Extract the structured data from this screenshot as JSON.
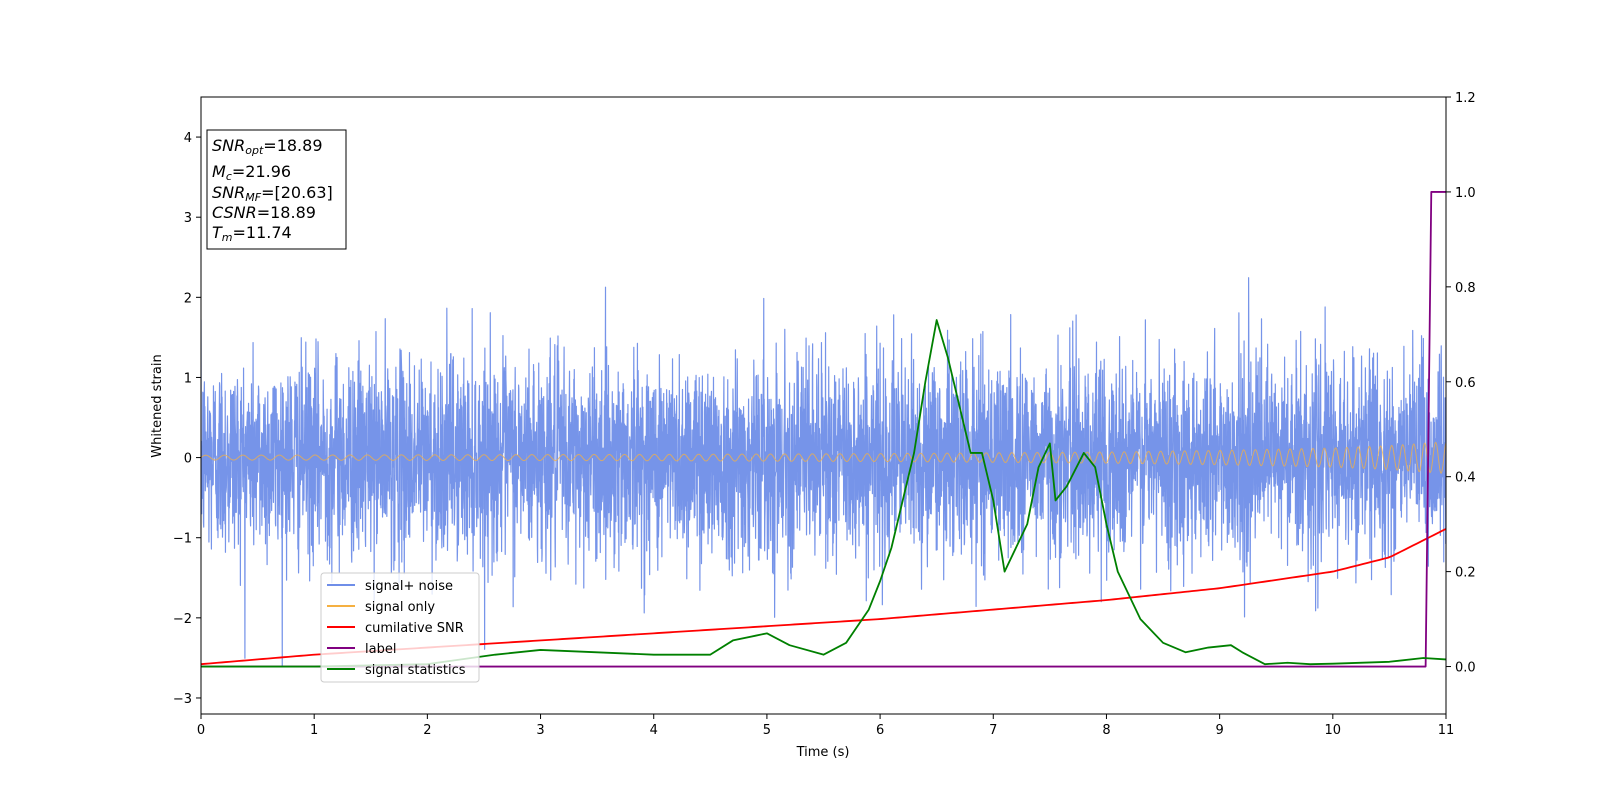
{
  "chart_data": {
    "type": "line",
    "xlabel": "Time (s)",
    "ylabel": "Whitened strain",
    "xlim": [
      0,
      11
    ],
    "ylim_left": [
      -3.2,
      4.5
    ],
    "ylim_right": [
      -0.1,
      1.2
    ],
    "x_ticks": [
      "0",
      "1",
      "2",
      "3",
      "4",
      "5",
      "6",
      "7",
      "8",
      "9",
      "10",
      "11"
    ],
    "y_left_ticks": [
      "4",
      "3",
      "2",
      "1",
      "0",
      "−1",
      "−2",
      "−3"
    ],
    "y_right_ticks": [
      "1.2",
      "1.0",
      "0.8",
      "0.6",
      "0.4",
      "0.2",
      "0.0"
    ],
    "grid": false,
    "legend_position": "lower-left",
    "info_box": [
      {
        "base": "SNR",
        "sub": "opt",
        "value": "=18.89"
      },
      {
        "base": "M",
        "sub": "c",
        "value": "=21.96"
      },
      {
        "base": "SNR",
        "sub": "MF",
        "value": "=[20.63]"
      },
      {
        "base": "CSNR",
        "sub": "",
        "value": "=18.89"
      },
      {
        "base": "T",
        "sub": "m",
        "value": "=11.74"
      }
    ],
    "series": [
      {
        "name": "signal+ noise",
        "axis": "left",
        "color": "#6f8ee8",
        "style": "noise",
        "amplitude_std": 0.62,
        "fs": 500
      },
      {
        "name": "signal only",
        "axis": "left",
        "color": "#f5b041",
        "style": "chirp",
        "x": [
          0,
          2,
          4,
          6,
          8,
          9,
          10,
          10.5,
          11
        ],
        "amplitude": [
          0.03,
          0.035,
          0.04,
          0.05,
          0.07,
          0.09,
          0.12,
          0.15,
          0.2
        ]
      },
      {
        "name": "cumilative SNR",
        "axis": "right",
        "color": "#ff0000",
        "x": [
          0,
          1,
          2,
          3,
          4,
          5,
          6,
          7,
          8,
          9,
          10,
          10.5,
          11
        ],
        "y": [
          0.005,
          0.025,
          0.04,
          0.055,
          0.07,
          0.085,
          0.1,
          0.12,
          0.14,
          0.165,
          0.2,
          0.23,
          0.29
        ]
      },
      {
        "name": "label",
        "axis": "right",
        "color": "#800080",
        "x": [
          0,
          10.82,
          10.87,
          11
        ],
        "y": [
          0,
          0,
          1.0,
          1.0
        ]
      },
      {
        "name": "signal statistics",
        "axis": "right",
        "color": "#008000",
        "x": [
          0,
          1,
          2,
          2.3,
          2.6,
          3.0,
          3.5,
          4.0,
          4.5,
          4.7,
          4.9,
          5.0,
          5.2,
          5.5,
          5.7,
          5.9,
          6.0,
          6.1,
          6.3,
          6.4,
          6.5,
          6.6,
          6.8,
          6.9,
          7.0,
          7.1,
          7.3,
          7.4,
          7.5,
          7.55,
          7.65,
          7.8,
          7.9,
          8.0,
          8.1,
          8.3,
          8.5,
          8.7,
          8.9,
          9.1,
          9.2,
          9.4,
          9.6,
          9.8,
          10.0,
          10.5,
          10.8,
          11
        ],
        "y": [
          0,
          0.0,
          0.005,
          0.015,
          0.025,
          0.035,
          0.03,
          0.025,
          0.025,
          0.055,
          0.065,
          0.07,
          0.045,
          0.025,
          0.05,
          0.12,
          0.18,
          0.25,
          0.45,
          0.6,
          0.73,
          0.65,
          0.45,
          0.45,
          0.35,
          0.2,
          0.3,
          0.42,
          0.47,
          0.35,
          0.38,
          0.45,
          0.42,
          0.3,
          0.2,
          0.1,
          0.05,
          0.03,
          0.04,
          0.045,
          0.03,
          0.005,
          0.008,
          0.005,
          0.006,
          0.01,
          0.018,
          0.015
        ]
      }
    ]
  }
}
